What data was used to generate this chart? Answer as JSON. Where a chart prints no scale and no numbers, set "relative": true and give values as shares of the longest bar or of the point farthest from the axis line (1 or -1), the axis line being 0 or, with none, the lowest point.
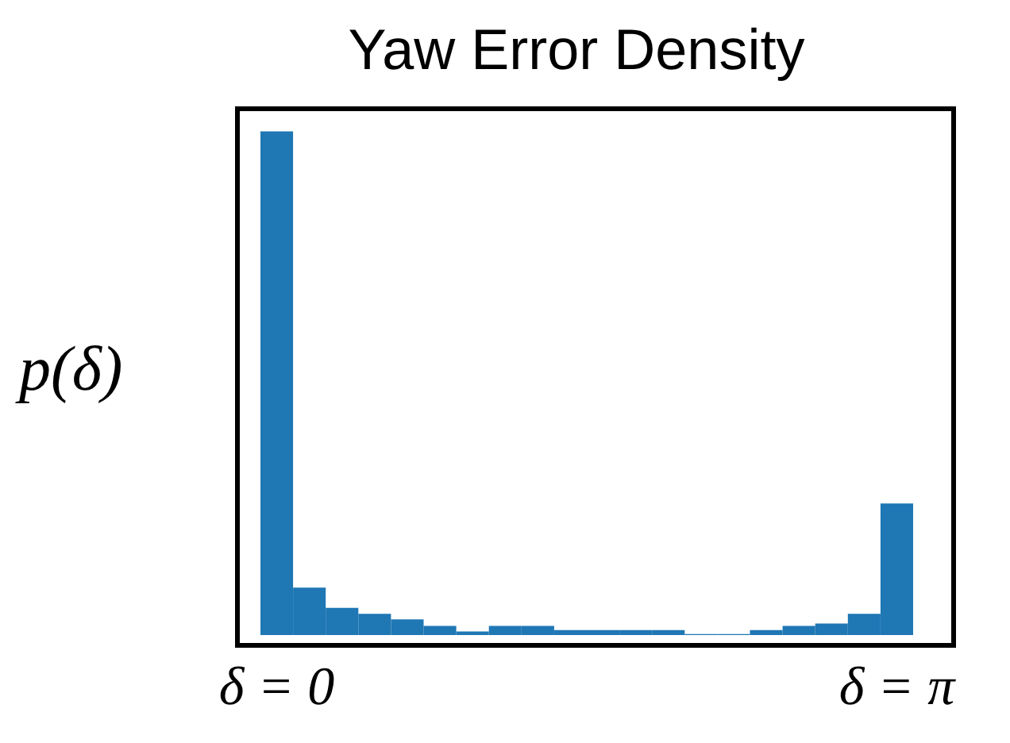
{
  "chart_data": {
    "type": "bar",
    "title": "Yaw Error Density",
    "ylabel": "p(δ)",
    "relative": true,
    "categories": [
      "δ = 0",
      null,
      null,
      null,
      null,
      null,
      null,
      null,
      null,
      null,
      null,
      null,
      null,
      null,
      null,
      null,
      null,
      null,
      null,
      "δ = π"
    ],
    "values": [
      1,
      0.094,
      0.054,
      0.042,
      0.031,
      0.018,
      0.007,
      0.018,
      0.018,
      0.01,
      0.01,
      0.01,
      0.01,
      0.002,
      0.002,
      0.01,
      0.018,
      0.023,
      0.042,
      0.261
    ],
    "color": "#1f77b4",
    "tick_labels": "x",
    "grid": false
  }
}
